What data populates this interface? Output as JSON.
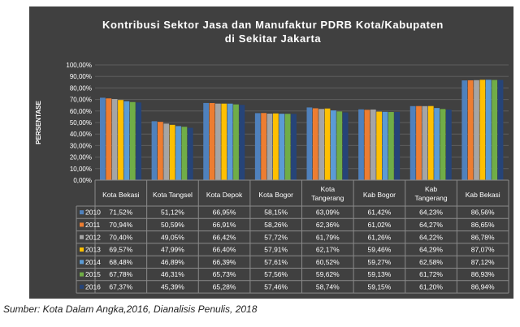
{
  "chart_data": {
    "type": "bar",
    "title": "Kontribusi Sektor Jasa dan Manufaktur PDRB Kota/Kabupaten di Sekitar Jakarta",
    "title_lines": [
      "Kontribusi Sektor Jasa dan Manufaktur PDRB Kota/Kabupaten",
      "di Sekitar Jakarta"
    ],
    "ylabel": "PERSENTASE",
    "xlabel": "",
    "ylim": [
      0,
      100
    ],
    "y_ticks": [
      "0,00%",
      "10,00%",
      "20,00%",
      "30,00%",
      "40,00%",
      "50,00%",
      "60,00%",
      "70,00%",
      "80,00%",
      "90,00%",
      "100,00%"
    ],
    "grid": true,
    "legend": "table-below",
    "categories": [
      "Kota Bekasi",
      "Kota Tangsel",
      "Kota Depok",
      "Kota Bogor",
      "Kota Tangerang",
      "Kab Bogor",
      "Kab Tangerang",
      "Kab Bekasi"
    ],
    "category_lines": [
      [
        "Kota Bekasi"
      ],
      [
        "Kota Tangsel"
      ],
      [
        "Kota Depok"
      ],
      [
        "Kota Bogor"
      ],
      [
        "Kota",
        "Tangerang"
      ],
      [
        "Kab Bogor"
      ],
      [
        "Kab",
        "Tangerang"
      ],
      [
        "Kab Bekasi"
      ]
    ],
    "series": [
      {
        "name": "2010",
        "color": "#4f81bd",
        "values": [
          71.52,
          51.12,
          66.95,
          58.15,
          63.09,
          61.42,
          64.23,
          86.56
        ],
        "labels": [
          "71,52%",
          "51,12%",
          "66,95%",
          "58,15%",
          "63,09%",
          "61,42%",
          "64,23%",
          "86,56%"
        ]
      },
      {
        "name": "2011",
        "color": "#ed7d31",
        "values": [
          70.94,
          50.59,
          66.91,
          58.26,
          62.36,
          61.02,
          64.27,
          86.65
        ],
        "labels": [
          "70,94%",
          "50,59%",
          "66,91%",
          "58,26%",
          "62,36%",
          "61,02%",
          "64,27%",
          "86,65%"
        ]
      },
      {
        "name": "2012",
        "color": "#a5a5a5",
        "values": [
          70.4,
          49.05,
          66.42,
          57.72,
          61.79,
          61.26,
          64.22,
          86.78
        ],
        "labels": [
          "70,40%",
          "49,05%",
          "66,42%",
          "57,72%",
          "61,79%",
          "61,26%",
          "64,22%",
          "86,78%"
        ]
      },
      {
        "name": "2013",
        "color": "#ffc000",
        "values": [
          69.57,
          47.99,
          66.4,
          57.91,
          62.17,
          59.46,
          64.29,
          87.07
        ],
        "labels": [
          "69,57%",
          "47,99%",
          "66,40%",
          "57,91%",
          "62,17%",
          "59,46%",
          "64,29%",
          "87,07%"
        ]
      },
      {
        "name": "2014",
        "color": "#5b9bd5",
        "values": [
          68.48,
          46.89,
          66.39,
          57.61,
          60.52,
          59.27,
          62.58,
          87.12
        ],
        "labels": [
          "68,48%",
          "46,89%",
          "66,39%",
          "57,61%",
          "60,52%",
          "59,27%",
          "62,58%",
          "87,12%"
        ]
      },
      {
        "name": "2015",
        "color": "#70ad47",
        "values": [
          67.78,
          46.31,
          65.73,
          57.56,
          59.62,
          59.13,
          61.72,
          86.93
        ],
        "labels": [
          "67,78%",
          "46,31%",
          "65,73%",
          "57,56%",
          "59,62%",
          "59,13%",
          "61,72%",
          "86,93%"
        ]
      },
      {
        "name": "2016",
        "color": "#264478",
        "values": [
          67.37,
          45.39,
          65.28,
          57.46,
          58.74,
          59.15,
          61.2,
          86.94
        ],
        "labels": [
          "67,37%",
          "45,39%",
          "65,28%",
          "57,46%",
          "58,74%",
          "59,15%",
          "61,20%",
          "86,94%"
        ]
      }
    ]
  },
  "caption": "Sumber: Kota Dalam Angka,2016, Dianalisis Penulis, 2018"
}
